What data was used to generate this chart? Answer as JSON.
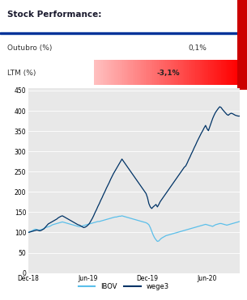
{
  "title": "Stock Performance:",
  "outubro_label": "Outubro (%)",
  "outubro_value": "0,1%",
  "ltm_label": "LTM (%)",
  "ltm_value": "-3,1%",
  "ibov_color": "#5bbfea",
  "wege3_color": "#003366",
  "legend_ibov": "IBOV",
  "legend_wege3": "wege3",
  "yticks": [
    0,
    50,
    100,
    150,
    200,
    250,
    300,
    350,
    400,
    450
  ],
  "xtick_labels": [
    "Dec-18",
    "Jun-19",
    "Dec-19",
    "Jun-20"
  ],
  "chart_bg": "#e8e8e8",
  "title_color": "#1a1a2e",
  "separator_color": "#003399",
  "red_bar_color": "#cc0000",
  "ibov_data": [
    100,
    102,
    103,
    105,
    107,
    108,
    107,
    106,
    106,
    107,
    108,
    110,
    112,
    113,
    114,
    115,
    117,
    119,
    120,
    121,
    122,
    123,
    124,
    125,
    126,
    125,
    124,
    123,
    122,
    121,
    120,
    119,
    118,
    117,
    116,
    115,
    114,
    115,
    116,
    117,
    118,
    119,
    120,
    121,
    122,
    123,
    124,
    125,
    126,
    127,
    127,
    128,
    129,
    130,
    131,
    132,
    133,
    134,
    135,
    136,
    137,
    138,
    138,
    139,
    140,
    140,
    141,
    140,
    139,
    138,
    137,
    136,
    135,
    134,
    133,
    132,
    131,
    130,
    129,
    128,
    127,
    126,
    125,
    124,
    122,
    119,
    112,
    103,
    94,
    87,
    82,
    78,
    79,
    83,
    86,
    88,
    90,
    92,
    93,
    94,
    95,
    96,
    97,
    98,
    99,
    100,
    101,
    102,
    103,
    104,
    105,
    106,
    107,
    108,
    109,
    110,
    111,
    112,
    113,
    114,
    115,
    116,
    117,
    118,
    119,
    120,
    119,
    118,
    117,
    116,
    115,
    117,
    119,
    120,
    121,
    122,
    122,
    121,
    120,
    119,
    118,
    119,
    120,
    121,
    122,
    123,
    124,
    125,
    126,
    127
  ],
  "wege3_data": [
    100,
    101,
    102,
    103,
    104,
    105,
    106,
    105,
    104,
    105,
    107,
    109,
    113,
    117,
    121,
    123,
    125,
    127,
    129,
    131,
    133,
    136,
    138,
    140,
    141,
    139,
    137,
    135,
    133,
    131,
    129,
    127,
    125,
    123,
    121,
    119,
    118,
    116,
    114,
    112,
    113,
    115,
    118,
    122,
    128,
    134,
    141,
    149,
    156,
    164,
    171,
    179,
    186,
    194,
    201,
    209,
    216,
    223,
    231,
    238,
    245,
    251,
    257,
    263,
    269,
    275,
    281,
    276,
    271,
    266,
    261,
    256,
    251,
    246,
    241,
    236,
    231,
    226,
    221,
    216,
    211,
    206,
    201,
    196,
    186,
    171,
    163,
    159,
    163,
    166,
    169,
    163,
    169,
    176,
    181,
    186,
    191,
    196,
    201,
    206,
    211,
    216,
    221,
    226,
    231,
    236,
    241,
    246,
    251,
    256,
    261,
    264,
    271,
    279,
    286,
    294,
    301,
    309,
    316,
    324,
    331,
    338,
    345,
    351,
    358,
    364,
    356,
    351,
    361,
    371,
    381,
    389,
    396,
    401,
    406,
    410,
    408,
    403,
    399,
    395,
    391,
    389,
    392,
    394,
    393,
    391,
    389,
    388,
    387,
    387
  ]
}
